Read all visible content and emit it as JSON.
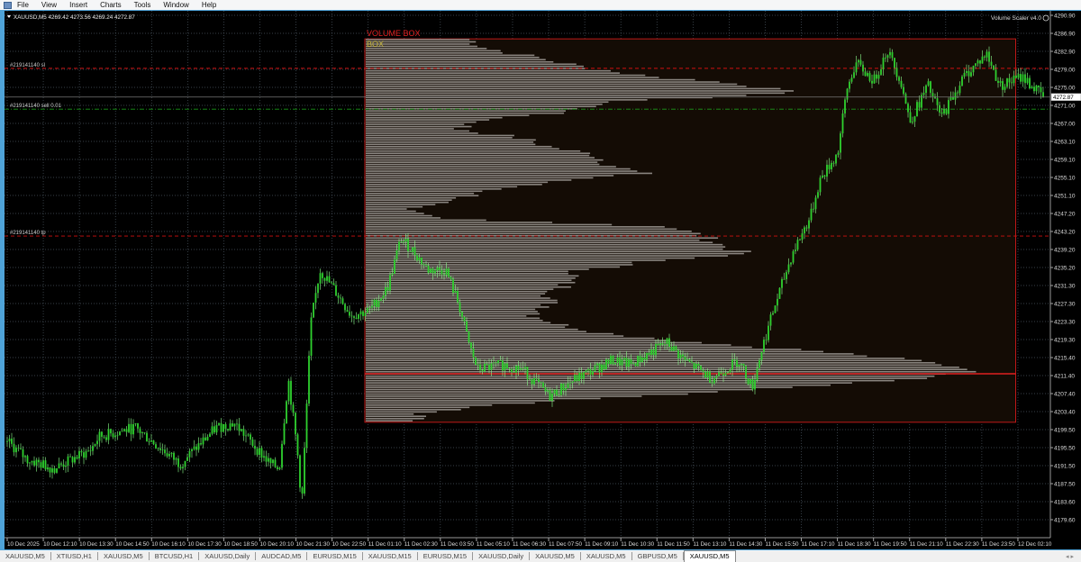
{
  "menu": [
    "File",
    "View",
    "Insert",
    "Charts",
    "Tools",
    "Window",
    "Help"
  ],
  "chart_header": "XAUUSD,M5  4269.42 4273.56 4269.24 4272.87",
  "indicator_label": "Volume Scaler v4.0",
  "volume_box": {
    "title": "VOLUME BOX",
    "subtitle": "BOX",
    "top": 4285.7,
    "bottom": 4201.1,
    "start": "11 Dec 00:04",
    "end": "12 Dec 00:09",
    "poc": 4211.8,
    "profile": [
      0.17,
      0.2,
      0.28,
      0.35,
      0.45,
      0.62,
      0.7,
      0.4,
      0.34,
      0.2,
      0.15,
      0.25,
      0.3,
      0.38,
      0.4,
      0.45,
      0.3,
      0.2,
      0.15,
      0.05,
      0.12,
      0.5,
      0.55,
      0.58,
      0.62,
      0.45,
      0.35,
      0.33,
      0.32,
      0.3,
      0.3,
      0.28,
      0.32,
      0.4,
      0.55,
      0.75,
      0.9,
      1.0,
      0.93,
      0.7,
      0.45,
      0.2,
      0.08
    ]
  },
  "order_lines": [
    {
      "label": "#219141140 sl",
      "price": 4279.2,
      "color": "#d01010",
      "style": "dash"
    },
    {
      "label": "#219141140 sell 0.01",
      "price": 4270.2,
      "color": "#1a9a1a",
      "style": "dashdot"
    },
    {
      "label": "#219141140 tp",
      "price": 4242.2,
      "color": "#d01010",
      "style": "dash"
    }
  ],
  "current_price": "4272.87",
  "colors": {
    "background": "#000000",
    "grid": "#4a5560",
    "candle": "#2fd12f",
    "wick": "#8dff8d",
    "box_border": "#c01818",
    "box_fill": "#140c05",
    "histogram": "#8a8580",
    "poc": "#e02020"
  },
  "chart_data": {
    "type": "candlestick",
    "symbol": "XAUUSD",
    "timeframe": "M5",
    "ylim": [
      4179.6,
      4290.9
    ],
    "price_ticks": [
      "4290.90",
      "4286.90",
      "4282.90",
      "4279.00",
      "4275.00",
      "4271.00",
      "4267.00",
      "4263.10",
      "4259.10",
      "4255.10",
      "4251.10",
      "4247.20",
      "4243.20",
      "4239.20",
      "4235.20",
      "4231.30",
      "4227.30",
      "4223.30",
      "4219.30",
      "4215.40",
      "4211.40",
      "4207.40",
      "4203.40",
      "4199.50",
      "4195.50",
      "4191.50",
      "4187.50",
      "4183.60",
      "4179.60"
    ],
    "time_ticks": [
      "10 Dec 2025",
      "10 Dec 12:10",
      "10 Dec 13:30",
      "10 Dec 14:50",
      "10 Dec 16:10",
      "10 Dec 17:30",
      "10 Dec 18:50",
      "10 Dec 20:10",
      "10 Dec 21:30",
      "10 Dec 22:50",
      "11 Dec 01:10",
      "11 Dec 02:30",
      "11 Dec 03:50",
      "11 Dec 05:10",
      "11 Dec 06:30",
      "11 Dec 07:50",
      "11 Dec 09:10",
      "11 Dec 10:30",
      "11 Dec 11:50",
      "11 Dec 13:10",
      "11 Dec 14:30",
      "11 Dec 15:50",
      "11 Dec 17:10",
      "11 Dec 18:30",
      "11 Dec 19:50",
      "11 Dec 21:10",
      "11 Dec 22:30",
      "11 Dec 23:50",
      "12 Dec 02:10"
    ],
    "price_path": [
      [
        "10 Dec 10:50",
        4196.9
      ],
      [
        "10 Dec 11:34",
        4192.9
      ],
      [
        "10 Dec 12:34",
        4190.9
      ],
      [
        "10 Dec 13:54",
        4194.9
      ],
      [
        "10 Dec 14:14",
        4197.9
      ],
      [
        "10 Dec 15:34",
        4199.9
      ],
      [
        "10 Dec 17:14",
        4191.9
      ],
      [
        "10 Dec 18:34",
        4199.9
      ],
      [
        "10 Dec 19:14",
        4200.9
      ],
      [
        "10 Dec 20:34",
        4191.9
      ],
      [
        "10 Dec 20:54",
        4190.9
      ],
      [
        "10 Dec 21:14",
        4210.8
      ],
      [
        "10 Dec 21:34",
        4194.9
      ],
      [
        "10 Dec 21:44",
        4183.0
      ],
      [
        "10 Dec 22:04",
        4222.7
      ],
      [
        "10 Dec 22:24",
        4234.7
      ],
      [
        "10 Dec 22:54",
        4230.7
      ],
      [
        "10 Dec 23:34",
        4224.7
      ],
      [
        "11 Dec 00:14",
        4225.7
      ],
      [
        "11 Dec 00:54",
        4230.7
      ],
      [
        "11 Dec 01:24",
        4241.6
      ],
      [
        "11 Dec 01:54",
        4238.6
      ],
      [
        "11 Dec 02:24",
        4234.7
      ],
      [
        "11 Dec 03:04",
        4234.7
      ],
      [
        "11 Dec 03:34",
        4226.7
      ],
      [
        "11 Dec 03:54",
        4218.7
      ],
      [
        "11 Dec 04:14",
        4212.8
      ],
      [
        "11 Dec 05:14",
        4213.8
      ],
      [
        "11 Dec 05:54",
        4212.8
      ],
      [
        "11 Dec 06:54",
        4206.8
      ],
      [
        "11 Dec 07:54",
        4210.8
      ],
      [
        "11 Dec 09:14",
        4214.8
      ],
      [
        "11 Dec 09:54",
        4213.8
      ],
      [
        "11 Dec 11:14",
        4218.7
      ],
      [
        "11 Dec 11:54",
        4214.8
      ],
      [
        "11 Dec 12:54",
        4210.8
      ],
      [
        "11 Dec 13:54",
        4214.8
      ],
      [
        "11 Dec 14:24",
        4208.8
      ],
      [
        "11 Dec 14:44",
        4216.8
      ],
      [
        "11 Dec 15:14",
        4226.7
      ],
      [
        "11 Dec 15:54",
        4238.6
      ],
      [
        "11 Dec 16:34",
        4246.6
      ],
      [
        "11 Dec 16:54",
        4254.5
      ],
      [
        "11 Dec 17:34",
        4260.5
      ],
      [
        "11 Dec 17:54",
        4274.4
      ],
      [
        "11 Dec 18:14",
        4280.4
      ],
      [
        "11 Dec 18:54",
        4276.4
      ],
      [
        "11 Dec 19:24",
        4283.3
      ],
      [
        "11 Dec 19:54",
        4276.4
      ],
      [
        "11 Dec 20:14",
        4267.4
      ],
      [
        "11 Dec 20:54",
        4275.4
      ],
      [
        "11 Dec 21:24",
        4268.4
      ],
      [
        "11 Dec 22:14",
        4277.4
      ],
      [
        "11 Dec 23:04",
        4282.4
      ],
      [
        "11 Dec 23:34",
        4275.4
      ],
      [
        "12 Dec 00:24",
        4277.4
      ],
      [
        "12 Dec 00:54",
        4274.4
      ],
      [
        "12 Dec 01:14",
        4272.87
      ]
    ]
  },
  "tabs": [
    "XAUUSD,M5",
    "XTIUSD,H1",
    "XAUUSD,M5",
    "BTCUSD,H1",
    "XAUUSD,Daily",
    "AUDCAD,M5",
    "EURUSD,M15",
    "XAUUSD,M15",
    "EURUSD,M15",
    "XAUUSD,Daily",
    "XAUUSD,M5",
    "XAUUSD,M5",
    "GBPUSD,M5",
    "XAUUSD,M5"
  ],
  "active_tab": 13,
  "tab_scroll": "◂ ▸"
}
